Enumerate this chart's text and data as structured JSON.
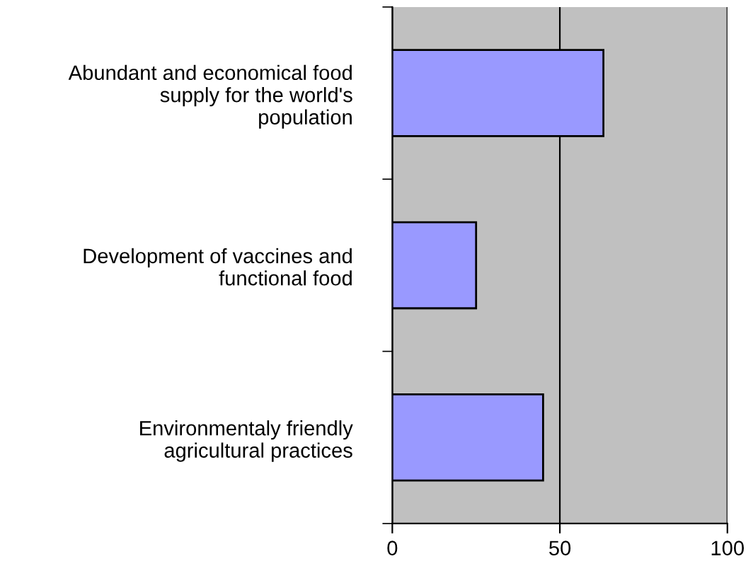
{
  "chart_data": {
    "type": "bar",
    "orientation": "horizontal",
    "categories": [
      "Abundant and economical food\nsupply for the world's\npopulation",
      "Development of vaccines and\nfunctional food",
      "Environmentaly friendly\nagricultural practices"
    ],
    "values": [
      63,
      25,
      45
    ],
    "color": "#9999ff",
    "xlim": [
      0,
      100
    ],
    "xticks": [
      0,
      50,
      100
    ],
    "grid": "x",
    "legend": false
  }
}
